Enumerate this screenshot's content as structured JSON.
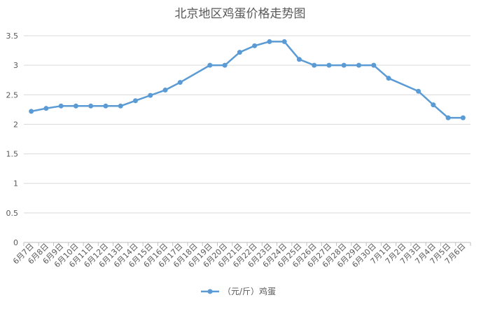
{
  "chart_data": {
    "type": "line",
    "title": "北京地区鸡蛋价格走势图",
    "xlabel": "",
    "ylabel": "",
    "ylim": [
      0,
      3.5
    ],
    "y_ticks": [
      "0",
      "0.5",
      "1",
      "1.5",
      "2",
      "2.5",
      "3",
      "3.5"
    ],
    "grid": true,
    "legend_position": "bottom",
    "categories": [
      "6月7日",
      "6月8日",
      "6月9日",
      "6月10日",
      "6月11日",
      "6月12日",
      "6月13日",
      "6月14日",
      "6月15日",
      "6月16日",
      "6月17日",
      "6月18日",
      "6月19日",
      "6月20日",
      "6月21日",
      "6月22日",
      "6月23日",
      "6月24日",
      "6月25日",
      "6月26日",
      "6月27日",
      "6月28日",
      "6月29日",
      "6月30日",
      "7月1日",
      "7月2日",
      "7月3日",
      "7月4日",
      "7月5日",
      "7月6日"
    ],
    "series": [
      {
        "name": "（元/斤）鸡蛋",
        "color": "#5b9bd5",
        "values": [
          2.22,
          2.27,
          2.31,
          2.31,
          2.31,
          2.31,
          2.31,
          2.4,
          2.49,
          2.58,
          2.71,
          null,
          3.0,
          3.0,
          3.22,
          3.33,
          3.4,
          3.4,
          3.1,
          3.0,
          3.0,
          3.0,
          3.0,
          3.0,
          2.78,
          null,
          2.56,
          2.33,
          2.11,
          2.11
        ]
      }
    ]
  }
}
